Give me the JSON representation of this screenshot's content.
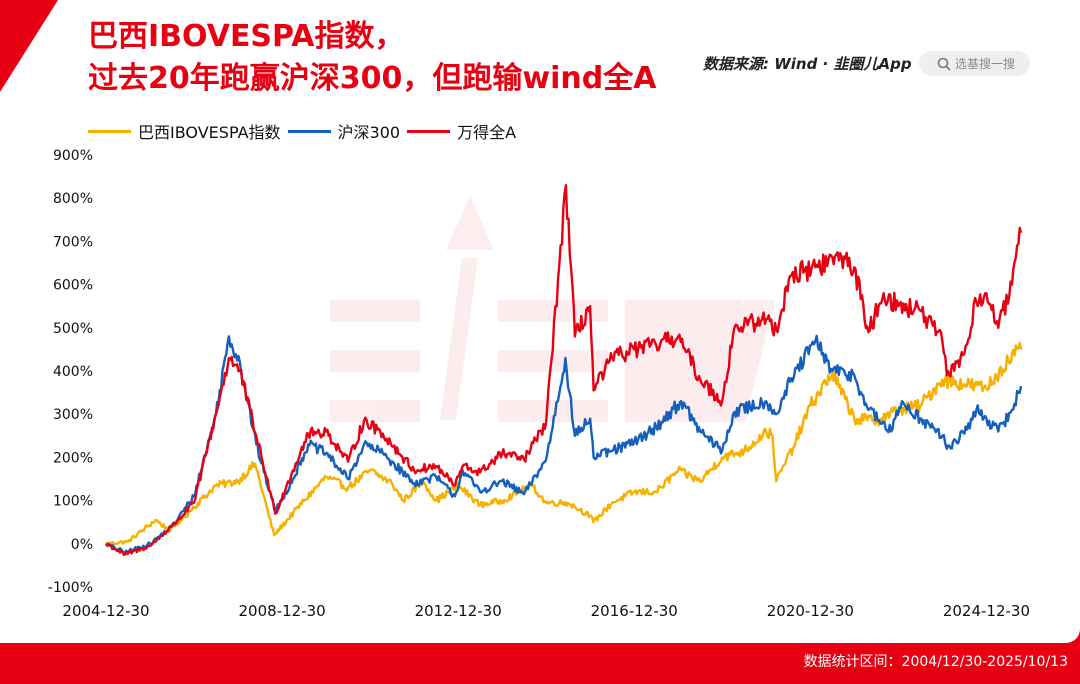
{
  "title": {
    "line1": "巴西IBOVESPA指数，",
    "line2": "过去20年跑赢沪深300，但跑输wind全A"
  },
  "header": {
    "source": "数据来源: Wind · 韭圈儿App",
    "search_placeholder": "选基搜一搜",
    "search_icon": "search-icon",
    "brand_color": "#e60012"
  },
  "footer": {
    "note": "数据统计区间：2004/12/30-2025/10/13"
  },
  "chart_data": {
    "type": "line",
    "xlabel": "",
    "ylabel": "",
    "y_unit": "%",
    "ylim": [
      -100,
      900
    ],
    "y_ticks": [
      -100,
      0,
      100,
      200,
      300,
      400,
      500,
      600,
      700,
      800,
      900
    ],
    "xlim": [
      "2004-12-30",
      "2025-10-13"
    ],
    "x_ticks": [
      "2004-12-30",
      "2008-12-30",
      "2012-12-30",
      "2016-12-30",
      "2020-12-30",
      "2024-12-30"
    ],
    "grid": false,
    "legend_position": "top-left",
    "series": [
      {
        "name": "巴西IBOVESPA指数",
        "color": "#f5b000",
        "points": [
          [
            "2004-12-30",
            0
          ],
          [
            "2005-06-30",
            5
          ],
          [
            "2006-02-15",
            55
          ],
          [
            "2006-06-15",
            30
          ],
          [
            "2006-12-30",
            85
          ],
          [
            "2007-06-30",
            135
          ],
          [
            "2007-12-30",
            145
          ],
          [
            "2008-05-20",
            185
          ],
          [
            "2008-10-25",
            20
          ],
          [
            "2009-06-30",
            100
          ],
          [
            "2009-12-30",
            155
          ],
          [
            "2010-06-30",
            130
          ],
          [
            "2010-12-30",
            170
          ],
          [
            "2011-06-30",
            140
          ],
          [
            "2011-09-30",
            100
          ],
          [
            "2012-03-15",
            145
          ],
          [
            "2012-06-30",
            100
          ],
          [
            "2012-12-30",
            135
          ],
          [
            "2013-06-30",
            90
          ],
          [
            "2013-12-30",
            100
          ],
          [
            "2014-09-01",
            135
          ],
          [
            "2014-12-30",
            95
          ],
          [
            "2015-06-30",
            95
          ],
          [
            "2015-12-30",
            65
          ],
          [
            "2016-01-26",
            50
          ],
          [
            "2016-06-30",
            95
          ],
          [
            "2016-12-30",
            120
          ],
          [
            "2017-06-30",
            120
          ],
          [
            "2017-12-30",
            170
          ],
          [
            "2018-06-30",
            145
          ],
          [
            "2018-12-30",
            200
          ],
          [
            "2019-06-30",
            215
          ],
          [
            "2019-12-30",
            260
          ],
          [
            "2020-02-20",
            250
          ],
          [
            "2020-03-23",
            145
          ],
          [
            "2020-08-30",
            235
          ],
          [
            "2020-12-30",
            320
          ],
          [
            "2021-06-30",
            395
          ],
          [
            "2021-12-30",
            290
          ],
          [
            "2022-06-30",
            285
          ],
          [
            "2022-12-30",
            310
          ],
          [
            "2023-06-30",
            320
          ],
          [
            "2023-12-30",
            380
          ],
          [
            "2024-06-30",
            370
          ],
          [
            "2024-12-30",
            360
          ],
          [
            "2025-06-30",
            425
          ],
          [
            "2025-10-13",
            450
          ]
        ]
      },
      {
        "name": "沪深300",
        "color": "#1560bd",
        "points": [
          [
            "2004-12-30",
            0
          ],
          [
            "2005-06-06",
            -20
          ],
          [
            "2005-12-30",
            0
          ],
          [
            "2006-06-30",
            40
          ],
          [
            "2006-12-30",
            110
          ],
          [
            "2007-06-30",
            300
          ],
          [
            "2007-10-16",
            480
          ],
          [
            "2008-01-15",
            420
          ],
          [
            "2008-05-30",
            230
          ],
          [
            "2008-11-04",
            75
          ],
          [
            "2009-03-30",
            150
          ],
          [
            "2009-08-04",
            230
          ],
          [
            "2009-12-30",
            210
          ],
          [
            "2010-06-30",
            150
          ],
          [
            "2010-11-10",
            230
          ],
          [
            "2011-04-15",
            210
          ],
          [
            "2011-12-30",
            140
          ],
          [
            "2012-06-30",
            155
          ],
          [
            "2012-12-03",
            110
          ],
          [
            "2013-02-05",
            170
          ],
          [
            "2013-06-30",
            120
          ],
          [
            "2013-12-30",
            145
          ],
          [
            "2014-06-30",
            115
          ],
          [
            "2014-12-30",
            195
          ],
          [
            "2015-06-08",
            430
          ],
          [
            "2015-08-26",
            250
          ],
          [
            "2015-12-30",
            290
          ],
          [
            "2016-01-28",
            200
          ],
          [
            "2016-06-30",
            215
          ],
          [
            "2016-12-30",
            235
          ],
          [
            "2017-06-30",
            270
          ],
          [
            "2018-01-24",
            330
          ],
          [
            "2018-06-30",
            260
          ],
          [
            "2018-12-30",
            215
          ],
          [
            "2019-04-10",
            305
          ],
          [
            "2019-12-30",
            330
          ],
          [
            "2020-03-23",
            300
          ],
          [
            "2020-07-15",
            375
          ],
          [
            "2021-02-10",
            470
          ],
          [
            "2021-06-30",
            400
          ],
          [
            "2021-12-30",
            390
          ],
          [
            "2022-04-26",
            310
          ],
          [
            "2022-10-31",
            260
          ],
          [
            "2023-01-30",
            330
          ],
          [
            "2023-06-30",
            290
          ],
          [
            "2023-12-30",
            250
          ],
          [
            "2024-02-05",
            220
          ],
          [
            "2024-06-30",
            255
          ],
          [
            "2024-10-08",
            310
          ],
          [
            "2024-12-30",
            290
          ],
          [
            "2025-04-08",
            260
          ],
          [
            "2025-07-30",
            310
          ],
          [
            "2025-10-13",
            365
          ]
        ]
      },
      {
        "name": "万得全A",
        "color": "#e60012",
        "points": [
          [
            "2004-12-30",
            0
          ],
          [
            "2005-06-06",
            -25
          ],
          [
            "2005-12-30",
            -5
          ],
          [
            "2006-06-30",
            40
          ],
          [
            "2006-12-30",
            95
          ],
          [
            "2007-06-30",
            300
          ],
          [
            "2007-10-16",
            430
          ],
          [
            "2008-01-15",
            400
          ],
          [
            "2008-05-30",
            250
          ],
          [
            "2008-11-04",
            70
          ],
          [
            "2009-03-30",
            170
          ],
          [
            "2009-08-04",
            255
          ],
          [
            "2009-12-30",
            260
          ],
          [
            "2010-06-30",
            190
          ],
          [
            "2010-11-10",
            285
          ],
          [
            "2011-04-15",
            255
          ],
          [
            "2011-12-30",
            170
          ],
          [
            "2012-06-30",
            180
          ],
          [
            "2012-12-03",
            135
          ],
          [
            "2013-02-05",
            180
          ],
          [
            "2013-06-30",
            165
          ],
          [
            "2013-12-30",
            210
          ],
          [
            "2014-06-30",
            195
          ],
          [
            "2014-12-30",
            280
          ],
          [
            "2015-06-12",
            830
          ],
          [
            "2015-08-26",
            480
          ],
          [
            "2015-12-30",
            550
          ],
          [
            "2016-01-28",
            355
          ],
          [
            "2016-06-30",
            430
          ],
          [
            "2016-12-30",
            450
          ],
          [
            "2017-06-30",
            460
          ],
          [
            "2017-12-30",
            480
          ],
          [
            "2018-06-30",
            380
          ],
          [
            "2018-12-30",
            330
          ],
          [
            "2019-04-10",
            500
          ],
          [
            "2019-12-30",
            520
          ],
          [
            "2020-03-23",
            495
          ],
          [
            "2020-07-15",
            620
          ],
          [
            "2021-02-10",
            640
          ],
          [
            "2021-09-15",
            665
          ],
          [
            "2021-12-30",
            640
          ],
          [
            "2022-04-26",
            490
          ],
          [
            "2022-08-30",
            580
          ],
          [
            "2022-12-30",
            550
          ],
          [
            "2023-06-30",
            540
          ],
          [
            "2023-12-30",
            470
          ],
          [
            "2024-02-05",
            390
          ],
          [
            "2024-06-30",
            440
          ],
          [
            "2024-10-08",
            560
          ],
          [
            "2024-12-30",
            580
          ],
          [
            "2025-04-08",
            500
          ],
          [
            "2025-07-30",
            600
          ],
          [
            "2025-10-13",
            720
          ]
        ]
      }
    ]
  }
}
